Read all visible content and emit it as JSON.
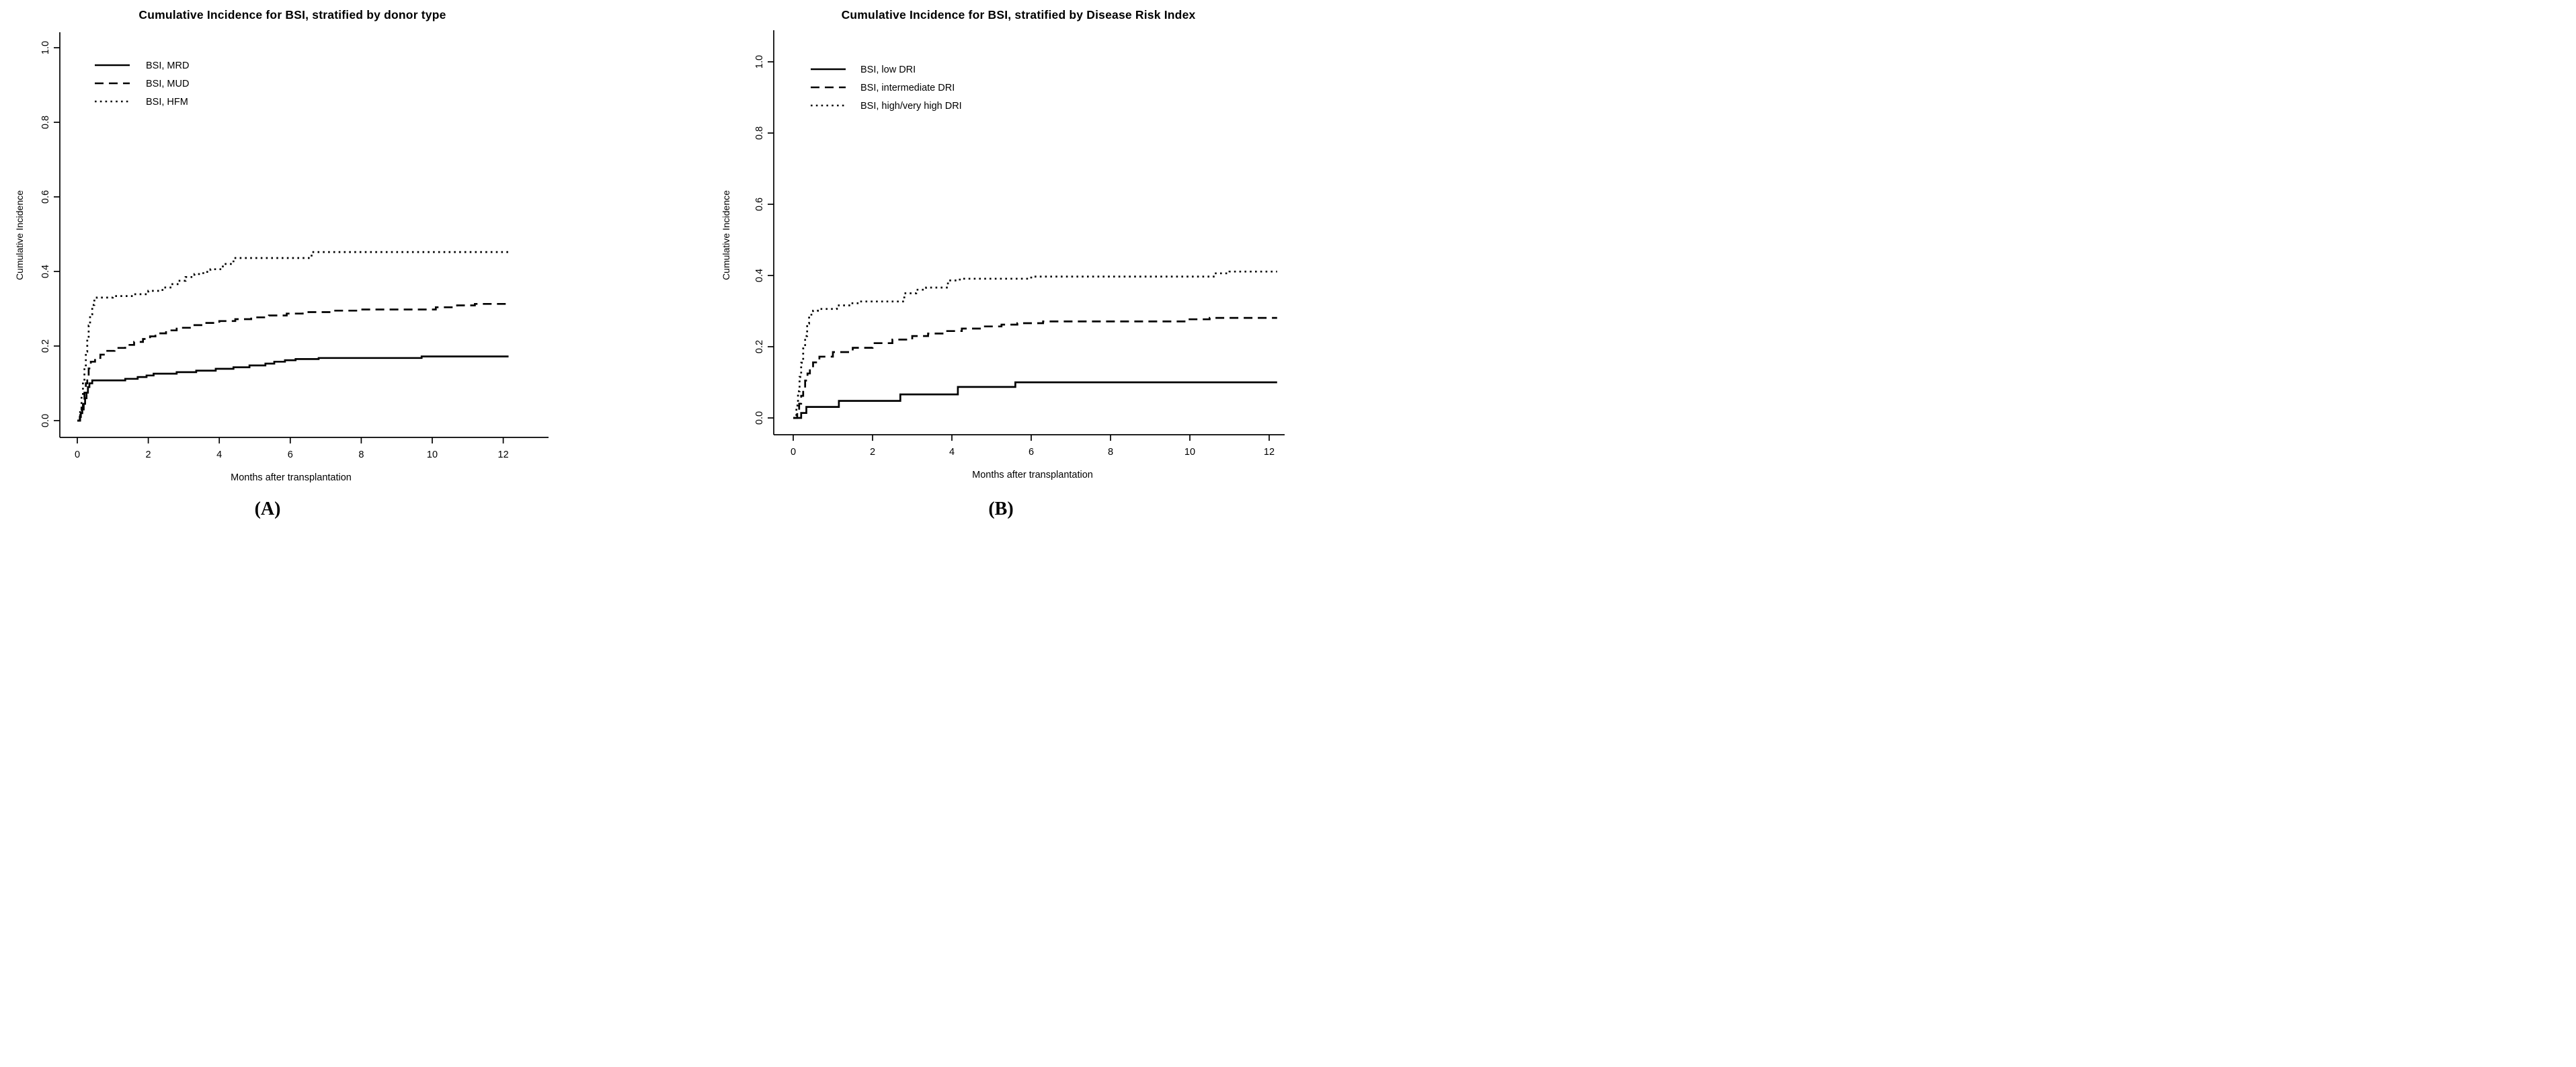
{
  "figure": {
    "background": "#ffffff",
    "ink_color": "#000000",
    "layout": "two-panel cumulative incidence figure"
  },
  "chart_data": {
    "type": "line",
    "subtype": "step-function cumulative incidence curves",
    "panels": [
      {
        "id": "A",
        "caption": "(A)",
        "title": "Cumulative Incidence for BSI, stratified by donor type",
        "xlabel": "Months after transplantation",
        "ylabel": "Cumulative Incidence",
        "xlim": [
          0,
          12
        ],
        "ylim": [
          0,
          1
        ],
        "x_ticks": [
          0,
          2,
          4,
          6,
          8,
          10,
          12
        ],
        "y_ticks": [
          "0.0",
          "0.2",
          "0.4",
          "0.6",
          "0.8",
          "1.0"
        ],
        "grid": false,
        "legend_position": "top-left",
        "series": [
          {
            "name": "BSI, MRD",
            "linestyle": "solid",
            "color": "#000000",
            "points": [
              [
                0,
                0
              ],
              [
                0.07,
                0.01
              ],
              [
                0.1,
                0.02
              ],
              [
                0.14,
                0.03
              ],
              [
                0.18,
                0.045
              ],
              [
                0.22,
                0.06
              ],
              [
                0.26,
                0.075
              ],
              [
                0.3,
                0.09
              ],
              [
                0.34,
                0.1
              ],
              [
                0.42,
                0.108
              ],
              [
                1.35,
                0.112
              ],
              [
                1.7,
                0.117
              ],
              [
                1.95,
                0.121
              ],
              [
                2.15,
                0.126
              ],
              [
                2.8,
                0.13
              ],
              [
                3.35,
                0.134
              ],
              [
                3.9,
                0.139
              ],
              [
                4.4,
                0.143
              ],
              [
                4.85,
                0.148
              ],
              [
                5.3,
                0.153
              ],
              [
                5.55,
                0.158
              ],
              [
                5.85,
                0.162
              ],
              [
                6.15,
                0.165
              ],
              [
                6.8,
                0.168
              ],
              [
                9.7,
                0.172
              ],
              [
                12.15,
                0.172
              ]
            ]
          },
          {
            "name": "BSI, MUD",
            "linestyle": "dashed",
            "color": "#000000",
            "points": [
              [
                0,
                0
              ],
              [
                0.08,
                0.015
              ],
              [
                0.12,
                0.035
              ],
              [
                0.16,
                0.055
              ],
              [
                0.2,
                0.075
              ],
              [
                0.24,
                0.1
              ],
              [
                0.28,
                0.12
              ],
              [
                0.32,
                0.14
              ],
              [
                0.38,
                0.158
              ],
              [
                0.5,
                0.168
              ],
              [
                0.65,
                0.177
              ],
              [
                0.8,
                0.187
              ],
              [
                1.05,
                0.195
              ],
              [
                1.35,
                0.203
              ],
              [
                1.6,
                0.211
              ],
              [
                1.85,
                0.219
              ],
              [
                2.05,
                0.226
              ],
              [
                2.2,
                0.234
              ],
              [
                2.5,
                0.242
              ],
              [
                2.8,
                0.249
              ],
              [
                3.2,
                0.256
              ],
              [
                3.6,
                0.262
              ],
              [
                4.0,
                0.267
              ],
              [
                4.45,
                0.272
              ],
              [
                4.9,
                0.277
              ],
              [
                5.4,
                0.282
              ],
              [
                5.9,
                0.287
              ],
              [
                6.35,
                0.291
              ],
              [
                7.2,
                0.295
              ],
              [
                7.9,
                0.298
              ],
              [
                10.1,
                0.304
              ],
              [
                10.7,
                0.309
              ],
              [
                11.2,
                0.313
              ],
              [
                12.15,
                0.313
              ]
            ]
          },
          {
            "name": "BSI, HFM",
            "linestyle": "dotted",
            "color": "#000000",
            "points": [
              [
                0,
                0
              ],
              [
                0.08,
                0.03
              ],
              [
                0.12,
                0.065
              ],
              [
                0.16,
                0.105
              ],
              [
                0.2,
                0.145
              ],
              [
                0.24,
                0.185
              ],
              [
                0.28,
                0.22
              ],
              [
                0.32,
                0.255
              ],
              [
                0.36,
                0.285
              ],
              [
                0.42,
                0.31
              ],
              [
                0.48,
                0.322
              ],
              [
                0.55,
                0.33
              ],
              [
                1.0,
                0.334
              ],
              [
                1.6,
                0.339
              ],
              [
                2.0,
                0.348
              ],
              [
                2.4,
                0.357
              ],
              [
                2.65,
                0.366
              ],
              [
                2.85,
                0.375
              ],
              [
                3.05,
                0.385
              ],
              [
                3.3,
                0.393
              ],
              [
                3.55,
                0.399
              ],
              [
                3.75,
                0.406
              ],
              [
                4.1,
                0.42
              ],
              [
                4.4,
                0.436
              ],
              [
                6.6,
                0.452
              ],
              [
                12.15,
                0.452
              ]
            ]
          }
        ]
      },
      {
        "id": "B",
        "caption": "(B)",
        "title": "Cumulative Incidence for BSI, stratified by Disease Risk Index",
        "xlabel": "Months after transplantation",
        "ylabel": "Cumulative Incidence",
        "xlim": [
          0,
          12
        ],
        "ylim": [
          0,
          1
        ],
        "x_ticks": [
          0,
          2,
          4,
          6,
          8,
          10,
          12
        ],
        "y_ticks": [
          "0.0",
          "0.2",
          "0.4",
          "0.6",
          "0.8",
          "1.0"
        ],
        "grid": false,
        "legend_position": "top-left",
        "series": [
          {
            "name": "BSI, low DRI",
            "linestyle": "solid",
            "color": "#000000",
            "points": [
              [
                0,
                0
              ],
              [
                0.2,
                0.014
              ],
              [
                0.33,
                0.031
              ],
              [
                1.15,
                0.048
              ],
              [
                2.7,
                0.066
              ],
              [
                4.15,
                0.087
              ],
              [
                5.6,
                0.1
              ],
              [
                12.2,
                0.1
              ]
            ]
          },
          {
            "name": "BSI, intermediate DRI",
            "linestyle": "dashed",
            "color": "#000000",
            "points": [
              [
                0,
                0
              ],
              [
                0.1,
                0.02
              ],
              [
                0.15,
                0.04
              ],
              [
                0.2,
                0.062
              ],
              [
                0.25,
                0.085
              ],
              [
                0.3,
                0.105
              ],
              [
                0.36,
                0.125
              ],
              [
                0.42,
                0.142
              ],
              [
                0.5,
                0.156
              ],
              [
                0.66,
                0.172
              ],
              [
                1.0,
                0.185
              ],
              [
                1.5,
                0.197
              ],
              [
                2.0,
                0.21
              ],
              [
                2.5,
                0.22
              ],
              [
                3.0,
                0.23
              ],
              [
                3.4,
                0.237
              ],
              [
                3.85,
                0.244
              ],
              [
                4.25,
                0.251
              ],
              [
                4.8,
                0.257
              ],
              [
                5.25,
                0.262
              ],
              [
                5.65,
                0.266
              ],
              [
                6.3,
                0.271
              ],
              [
                9.9,
                0.277
              ],
              [
                10.5,
                0.281
              ],
              [
                12.2,
                0.281
              ]
            ]
          },
          {
            "name": "BSI, high/very high DRI",
            "linestyle": "dotted",
            "color": "#000000",
            "points": [
              [
                0,
                0
              ],
              [
                0.08,
                0.035
              ],
              [
                0.12,
                0.075
              ],
              [
                0.16,
                0.115
              ],
              [
                0.2,
                0.155
              ],
              [
                0.25,
                0.195
              ],
              [
                0.3,
                0.23
              ],
              [
                0.35,
                0.265
              ],
              [
                0.4,
                0.29
              ],
              [
                0.5,
                0.301
              ],
              [
                0.62,
                0.306
              ],
              [
                1.1,
                0.316
              ],
              [
                1.45,
                0.322
              ],
              [
                1.65,
                0.327
              ],
              [
                2.8,
                0.35
              ],
              [
                3.1,
                0.36
              ],
              [
                3.35,
                0.366
              ],
              [
                3.9,
                0.386
              ],
              [
                4.2,
                0.391
              ],
              [
                6.0,
                0.397
              ],
              [
                10.6,
                0.406
              ],
              [
                11.0,
                0.411
              ],
              [
                12.2,
                0.411
              ]
            ]
          }
        ]
      }
    ]
  }
}
